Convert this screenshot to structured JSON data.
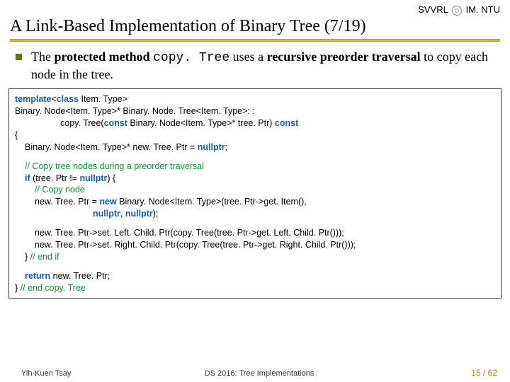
{
  "header": {
    "org_left": "SVVRL",
    "org_right": "IM. NTU",
    "title": "A Link-Based Implementation of Binary Tree (7/19)"
  },
  "bullet": {
    "pre": "The ",
    "b1": "protected method ",
    "code": "copy. Tree",
    "mid": " uses a ",
    "b2": "recursive preorder traversal",
    "post": " to copy each node in the tree."
  },
  "code": {
    "l1a": "template",
    "l1b": "<",
    "l1c": "class",
    "l1d": " Item. Type>",
    "l2": "Binary. Node<Item. Type>* Binary. Node. Tree<Item. Type>: :",
    "l3a": "copy. Tree(",
    "l3b": "const",
    "l3c": " Binary. Node<Item. Type>* tree. Ptr) ",
    "l3d": "const",
    "l4": "{",
    "l5a": "Binary. Node<Item. Type>* new. Tree. Ptr = ",
    "l5b": "nullptr",
    "l5c": ";",
    "c1": "// Copy tree nodes during a preorder traversal",
    "l6a": "if",
    "l6b": " (tree. Ptr != ",
    "l6c": "nullptr",
    "l6d": ") {",
    "c2": "// Copy node",
    "l7a": "new. Tree. Ptr = ",
    "l7b": "new",
    "l7c": " Binary. Node<Item. Type>(tree. Ptr->get. Item(),",
    "l8a": "nullptr",
    "l8b": ", ",
    "l8c": "nullptr",
    "l8d": ");",
    "l9": "new. Tree. Ptr->set. Left. Child. Ptr(copy. Tree(tree. Ptr->get. Left. Child. Ptr()));",
    "l10": "new. Tree. Ptr->set. Right. Child. Ptr(copy. Tree(tree. Ptr->get. Right. Child. Ptr()));",
    "l11a": "} ",
    "l11b": "// end if",
    "l12a": "return",
    "l12b": " new. Tree. Ptr;",
    "l13a": "} ",
    "l13b": "// end copy. Tree"
  },
  "footer": {
    "left": "Yih-Kuen Tsay",
    "center": "DS 2016: Tree Implementations",
    "right": "15 / 62"
  },
  "colors": {
    "bullet_sq": "#5a7a1a",
    "keyword": "#1a5aa8",
    "comment": "#1a8a3a",
    "underline_top": "#b8a818",
    "page_num": "#b08a00"
  }
}
